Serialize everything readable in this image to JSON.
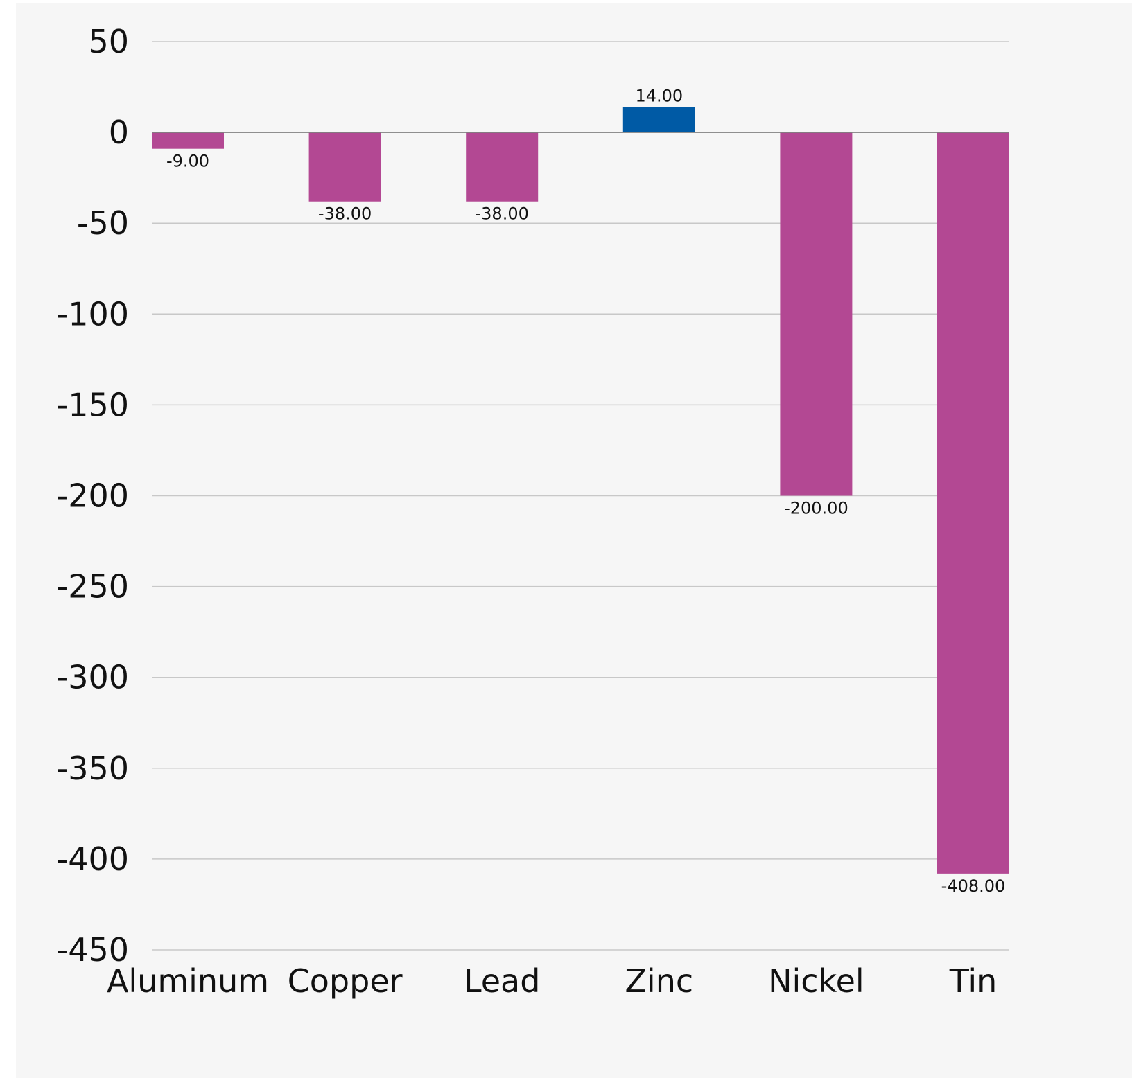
{
  "chart_data": {
    "type": "bar",
    "title": "",
    "xlabel": "",
    "ylabel": "",
    "categories": [
      "Aluminum",
      "Copper",
      "Lead",
      "Zinc",
      "Nickel",
      "Tin"
    ],
    "values": [
      -9,
      -38,
      -38,
      14,
      -200,
      -408
    ],
    "data_labels": [
      "-9.00",
      "-38.00",
      "-38.00",
      "14.00",
      "-200.00",
      "-408.00"
    ],
    "ylim": [
      -450,
      50
    ],
    "yticks": [
      50,
      0,
      -50,
      -100,
      -150,
      -200,
      -250,
      -300,
      -350,
      -400,
      -450
    ],
    "ytick_labels": [
      "50",
      "0",
      "-50",
      "-100",
      "-150",
      "-200",
      "-250",
      "-300",
      "-350",
      "-400",
      "-450"
    ],
    "grid": true,
    "legend": "none",
    "colors": {
      "negative": "#b34893",
      "positive": "#005aa5",
      "background": "#f6f6f6",
      "gridline": "#c8c8c8",
      "zero_line": "#808080"
    }
  }
}
